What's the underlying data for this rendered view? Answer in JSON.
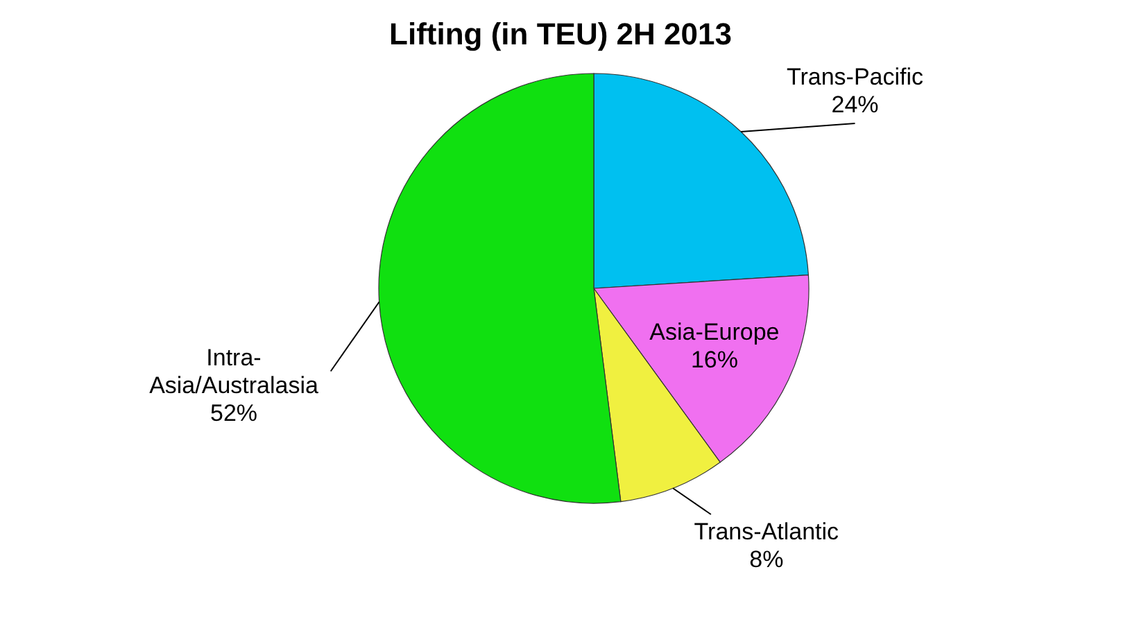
{
  "chart_data": {
    "type": "pie",
    "title": "Lifting (in TEU) 2H 2013",
    "categories": [
      "Trans-Pacific",
      "Asia-Europe",
      "Trans-Atlantic",
      "Intra-Asia/Australasia"
    ],
    "values": [
      24,
      16,
      8,
      52
    ],
    "value_labels": [
      "24%",
      "16%",
      "8%",
      "52%"
    ],
    "colors": [
      "#00c0f0",
      "#f070f0",
      "#f0f040",
      "#10e010"
    ]
  }
}
